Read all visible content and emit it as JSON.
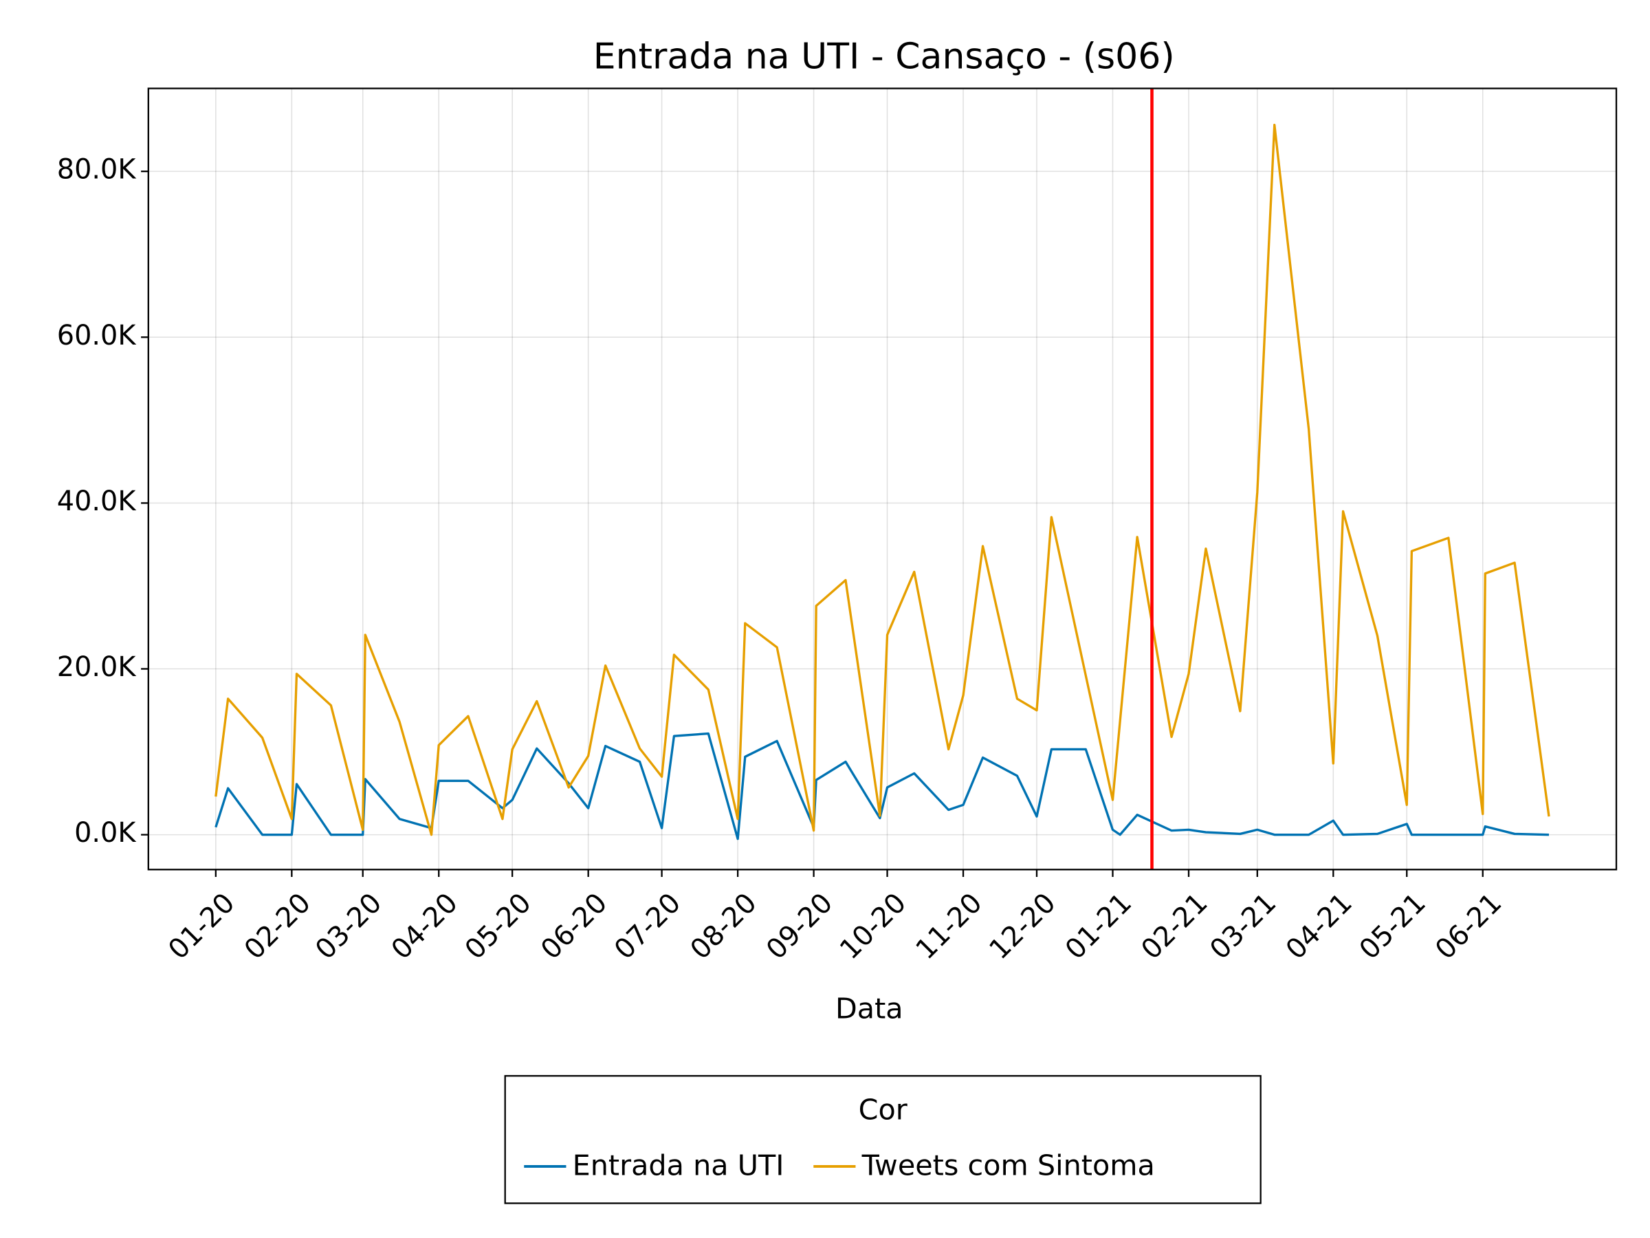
{
  "chart_data": {
    "type": "line",
    "title": "Entrada na UTI - Cansaço - (s06)",
    "x_label": "Data",
    "legend_title": "Cor",
    "legend_position": "bottom",
    "grid": true,
    "xlim": [
      -27.5,
      571.5
    ],
    "xticks": [
      {
        "value": 0,
        "label": "01-20"
      },
      {
        "value": 31,
        "label": "02-20"
      },
      {
        "value": 60,
        "label": "03-20"
      },
      {
        "value": 91,
        "label": "04-20"
      },
      {
        "value": 121,
        "label": "05-20"
      },
      {
        "value": 152,
        "label": "06-20"
      },
      {
        "value": 182,
        "label": "07-20"
      },
      {
        "value": 213,
        "label": "08-20"
      },
      {
        "value": 244,
        "label": "09-20"
      },
      {
        "value": 274,
        "label": "10-20"
      },
      {
        "value": 305,
        "label": "11-20"
      },
      {
        "value": 335,
        "label": "12-20"
      },
      {
        "value": 366,
        "label": "01-21"
      },
      {
        "value": 397,
        "label": "02-21"
      },
      {
        "value": 425,
        "label": "03-21"
      },
      {
        "value": 456,
        "label": "04-21"
      },
      {
        "value": 486,
        "label": "05-21"
      },
      {
        "value": 517,
        "label": "06-21"
      }
    ],
    "ylim": [
      -4200,
      90000
    ],
    "yticks": [
      {
        "value": 0,
        "label": "0.0K"
      },
      {
        "value": 20000,
        "label": "20.0K"
      },
      {
        "value": 40000,
        "label": "40.0K"
      },
      {
        "value": 60000,
        "label": "60.0K"
      },
      {
        "value": 80000,
        "label": "80.0K"
      }
    ],
    "vline": 382,
    "vline_color": "#ff0000",
    "series": [
      {
        "name": "Entrada na UTI",
        "color": "#0072b2",
        "x": [
          0,
          5,
          19,
          31,
          33,
          47,
          60,
          61,
          75,
          88,
          91,
          103,
          117,
          121,
          131,
          144,
          152,
          159,
          173,
          182,
          187,
          201,
          213,
          216,
          229,
          244,
          245,
          257,
          271,
          274,
          285,
          299,
          305,
          313,
          327,
          335,
          341,
          355,
          366,
          369,
          376,
          390,
          397,
          404,
          418,
          425,
          432,
          446,
          456,
          460,
          474,
          486,
          488,
          503,
          517,
          518,
          530,
          544
        ],
        "values": [
          900,
          5600,
          0,
          0,
          6100,
          0,
          0,
          6700,
          1900,
          800,
          6500,
          6500,
          3200,
          4200,
          10400,
          6200,
          3200,
          10700,
          8800,
          800,
          11900,
          12200,
          -500,
          9400,
          11300,
          900,
          6600,
          8800,
          2000,
          5700,
          7400,
          3000,
          3600,
          9300,
          7100,
          2200,
          10300,
          10300,
          600,
          0,
          2400,
          500,
          600,
          300,
          100,
          600,
          0,
          0,
          1700,
          0,
          100,
          1300,
          0,
          0,
          0,
          1000,
          100,
          0
        ]
      },
      {
        "name": "Tweets com Sintoma",
        "color": "#e69f00",
        "x": [
          0,
          5,
          19,
          31,
          33,
          47,
          60,
          61,
          75,
          88,
          91,
          103,
          117,
          121,
          131,
          144,
          152,
          159,
          173,
          182,
          187,
          201,
          213,
          216,
          229,
          244,
          245,
          257,
          271,
          274,
          285,
          299,
          305,
          313,
          327,
          335,
          341,
          366,
          376,
          390,
          397,
          404,
          418,
          425,
          432,
          446,
          456,
          460,
          474,
          486,
          488,
          503,
          517,
          518,
          530,
          544
        ],
        "values": [
          4600,
          16400,
          11700,
          1900,
          19400,
          15600,
          600,
          24100,
          13600,
          0,
          10800,
          14300,
          1900,
          10300,
          16100,
          5700,
          9500,
          20400,
          10400,
          7000,
          21700,
          17500,
          1900,
          25500,
          22600,
          500,
          27600,
          30700,
          2300,
          24100,
          31700,
          10300,
          16800,
          34800,
          16400,
          15000,
          38300,
          4200,
          35900,
          11800,
          19400,
          34500,
          14900,
          41300,
          85600,
          48900,
          8600,
          39000,
          24000,
          3600,
          34200,
          35800,
          2500,
          31500,
          32800,
          2200
        ]
      }
    ]
  }
}
